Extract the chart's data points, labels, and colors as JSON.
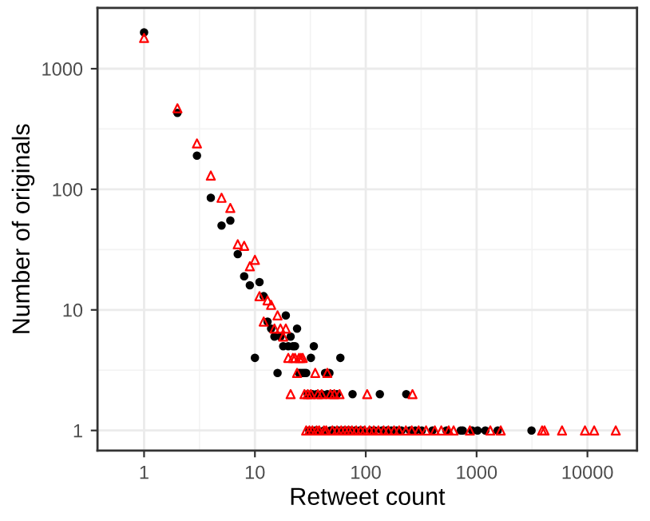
{
  "chart_data": {
    "type": "scatter",
    "xlabel": "Retweet count",
    "ylabel": "Number of originals",
    "log": "xy",
    "grid": true,
    "legend": false,
    "xlim": [
      0.38,
      28000
    ],
    "ylim": [
      0.68,
      3200
    ],
    "xticks": [
      1,
      10,
      100,
      1000,
      10000
    ],
    "yticks": [
      1,
      10,
      100,
      1000
    ],
    "series": [
      {
        "color": "#000000",
        "marker": "circle",
        "x": [
          1,
          2,
          3,
          4,
          5,
          6,
          7,
          8,
          9,
          10,
          11,
          12,
          13,
          14,
          15,
          16,
          17,
          18,
          19,
          20,
          21,
          22,
          23,
          24,
          25,
          26,
          27,
          28,
          29,
          30,
          32,
          33,
          34,
          36,
          40,
          43,
          45,
          47,
          50,
          55,
          59,
          76,
          134,
          232,
          31,
          35,
          37,
          42,
          48,
          52,
          57,
          63,
          68,
          72,
          80,
          88,
          95,
          110,
          120,
          140,
          155,
          170,
          190,
          210,
          250,
          280,
          320,
          400,
          535,
          720,
          750,
          910,
          1020,
          1200,
          1550,
          3130
        ],
        "values": [
          2000,
          430,
          190,
          85,
          50,
          55,
          29,
          19,
          16,
          4,
          17,
          13,
          8,
          7,
          6,
          3,
          6,
          5,
          9,
          5,
          6,
          5,
          5,
          7,
          3,
          3,
          3,
          3,
          3,
          2,
          4,
          2,
          5,
          2,
          2,
          3,
          2,
          3,
          2,
          2,
          4,
          2,
          2,
          2,
          1,
          1,
          1,
          1,
          1,
          1,
          1,
          1,
          1,
          1,
          1,
          1,
          1,
          1,
          1,
          1,
          1,
          1,
          1,
          1,
          1,
          1,
          1,
          1,
          1,
          1,
          1,
          1,
          1,
          1,
          1,
          1
        ]
      },
      {
        "color": "#ff0000",
        "marker": "triangle",
        "x": [
          1,
          2,
          3,
          4,
          5,
          6,
          7,
          8,
          9,
          10,
          11,
          12,
          13,
          14,
          15,
          16,
          17,
          18,
          19,
          20,
          21,
          22,
          23,
          24,
          25,
          26,
          27,
          28,
          30,
          32,
          35,
          37,
          40,
          45,
          48,
          52,
          58,
          103,
          264,
          29,
          31,
          33,
          36,
          38,
          42,
          44,
          50,
          55,
          60,
          65,
          70,
          75,
          82,
          90,
          98,
          108,
          118,
          130,
          145,
          160,
          180,
          200,
          230,
          260,
          300,
          350,
          420,
          480,
          560,
          620,
          870,
          1330,
          1650,
          3900,
          4100,
          5900,
          9500,
          11500,
          18000
        ],
        "values": [
          1800,
          470,
          240,
          130,
          85,
          70,
          35,
          34,
          23,
          26,
          13,
          8,
          12,
          11,
          7,
          9,
          7,
          6,
          7,
          4,
          2,
          4,
          4,
          3,
          4,
          4,
          4,
          2,
          2,
          2,
          3,
          2,
          2,
          3,
          2,
          2,
          2,
          2,
          2,
          1,
          1,
          1,
          1,
          1,
          1,
          1,
          1,
          1,
          1,
          1,
          1,
          1,
          1,
          1,
          1,
          1,
          1,
          1,
          1,
          1,
          1,
          1,
          1,
          1,
          1,
          1,
          1,
          1,
          1,
          1,
          1,
          1,
          1,
          1,
          1,
          1,
          1,
          1,
          1
        ]
      }
    ]
  }
}
